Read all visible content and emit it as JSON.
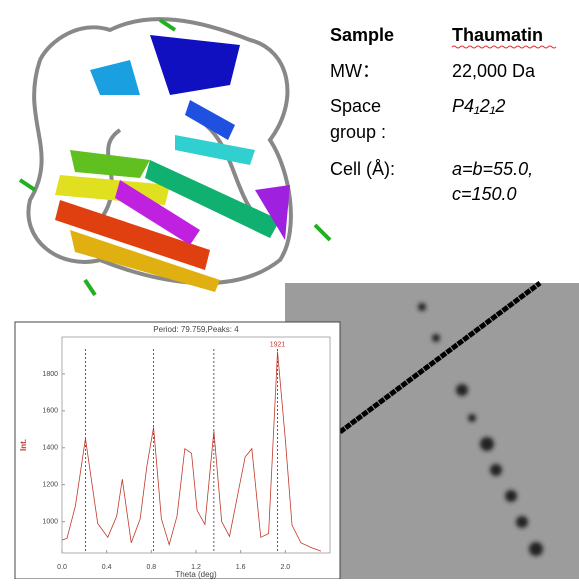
{
  "sample_info": {
    "header": [
      "Sample",
      "Thaumatin"
    ],
    "mw": [
      "MW：",
      "22,000 Da"
    ],
    "space_group": {
      "label": [
        "Space",
        "group :"
      ],
      "value": "P4₁2₁2"
    },
    "cell": {
      "label": "Cell (Å):",
      "value": [
        "a=b=55.0,",
        "c=150.0"
      ]
    }
  },
  "chart_data": {
    "type": "line",
    "title": "Period: 79.759,Peaks: 4",
    "x_label": "Theta (deg)",
    "y_label": "Int.",
    "xlim": [
      0,
      2.4
    ],
    "ylim": [
      830,
      2000
    ],
    "xticks": [
      {
        "value": 0,
        "label": "0.0"
      },
      0.4,
      0.8,
      1.2,
      1.6,
      {
        "value": 2,
        "label": "2.0"
      }
    ],
    "yticks": [
      1000,
      1200,
      1400,
      1600,
      1800
    ],
    "peaks": [
      0.21,
      0.82,
      1.36,
      1.93
    ],
    "series": [
      {
        "name": "Int.",
        "color": "#c0392b",
        "x": [
          0,
          0.045,
          0.12,
          0.21,
          0.32,
          0.41,
          0.49,
          0.54,
          0.62,
          0.7,
          0.76,
          0.82,
          0.89,
          0.96,
          1.03,
          1.1,
          1.16,
          1.21,
          1.28,
          1.36,
          1.43,
          1.5,
          1.57,
          1.64,
          1.7,
          1.78,
          1.85,
          1.93,
          2.0,
          2.06,
          2.14,
          2.23,
          2.32
        ],
        "values": [
          900,
          910,
          1085,
          1450,
          990,
          915,
          1030,
          1230,
          885,
          1015,
          1300,
          1510,
          1015,
          875,
          1030,
          1395,
          1370,
          1060,
          985,
          1490,
          1000,
          920,
          1135,
          1350,
          1395,
          915,
          935,
          1921,
          1445,
          980,
          885,
          860,
          840
        ]
      }
    ]
  }
}
